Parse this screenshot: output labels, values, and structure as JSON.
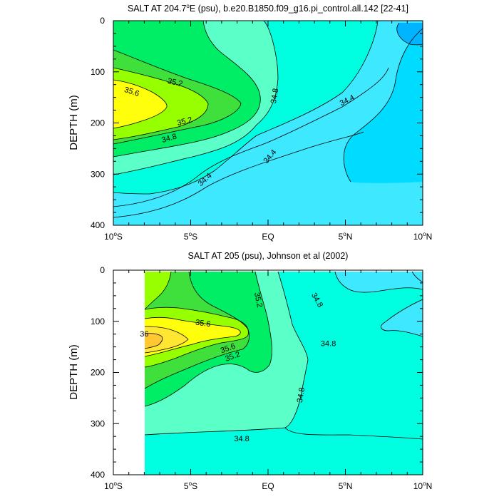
{
  "chart_data": [
    {
      "type": "contour",
      "title_main": "SALT AT 204.7",
      "title_deg": "o",
      "title_rest": "E (psu), b.e20.B1850.f09_g16.pi_control.all.142 [22-41]",
      "ylabel": "DEPTH (m)",
      "xlabel": "",
      "xlim": [
        -10,
        10
      ],
      "ylim": [
        0,
        400
      ],
      "y_inverted": true,
      "grid": false,
      "y_ticks": [
        "0",
        "100",
        "200",
        "300",
        "400"
      ],
      "x_ticks": [
        {
          "value": -10,
          "num": "10",
          "sup": "o",
          "hemi": "S"
        },
        {
          "value": -5,
          "num": "5",
          "sup": "o",
          "hemi": "S"
        },
        {
          "value": 0,
          "num": "EQ",
          "sup": "",
          "hemi": ""
        },
        {
          "value": 5,
          "num": "5",
          "sup": "o",
          "hemi": "N"
        },
        {
          "value": 10,
          "num": "10",
          "sup": "o",
          "hemi": "N"
        }
      ],
      "levels": [
        34.2,
        34.4,
        34.6,
        34.8,
        35.0,
        35.2,
        35.4,
        35.6
      ],
      "fill_colors": [
        "#00b4ff",
        "#00dcff",
        "#3ee8ff",
        "#00ffe1",
        "#5bffc8",
        "#00ee66",
        "#3fe03c",
        "#96ff00",
        "#ffff0c"
      ],
      "labels": [
        {
          "text": "35.6",
          "x": -8.8,
          "y": 138,
          "angle": 18
        },
        {
          "text": "35.2",
          "x": -6.0,
          "y": 120,
          "angle": 12
        },
        {
          "text": "35.2",
          "x": -5.4,
          "y": 196,
          "angle": -14
        },
        {
          "text": "34.8",
          "x": -6.4,
          "y": 229,
          "angle": -16
        },
        {
          "text": "34.8",
          "x": 0.4,
          "y": 147,
          "angle": -80
        },
        {
          "text": "34.4",
          "x": 5.1,
          "y": 155,
          "angle": -27
        },
        {
          "text": "34.4",
          "x": 0.1,
          "y": 265,
          "angle": -50
        },
        {
          "text": "34.4",
          "x": -4.1,
          "y": 310,
          "angle": -42
        }
      ]
    },
    {
      "type": "contour",
      "title_main": "SALT AT 205 (psu), Johnson et al (2002)",
      "title_deg": "",
      "title_rest": "",
      "ylabel": "DEPTH (m)",
      "xlabel": "",
      "xlim": [
        -10,
        10
      ],
      "ylim": [
        0,
        400
      ],
      "y_inverted": true,
      "grid": false,
      "y_ticks": [
        "0",
        "100",
        "200",
        "300",
        "400"
      ],
      "x_ticks": [
        {
          "value": -10,
          "num": "10",
          "sup": "o",
          "hemi": "S"
        },
        {
          "value": -5,
          "num": "5",
          "sup": "o",
          "hemi": "S"
        },
        {
          "value": 0,
          "num": "EQ",
          "sup": "",
          "hemi": ""
        },
        {
          "value": 5,
          "num": "5",
          "sup": "o",
          "hemi": "N"
        },
        {
          "value": 10,
          "num": "10",
          "sup": "o",
          "hemi": "N"
        }
      ],
      "levels": [
        34.6,
        34.8,
        35.0,
        35.2,
        35.4,
        35.6,
        35.8,
        36.0
      ],
      "fill_colors": [
        "#3ee8ff",
        "#00ffe1",
        "#5bffc8",
        "#00ee66",
        "#3fe03c",
        "#96ff00",
        "#ffff0c",
        "#ffe632",
        "#ffc832"
      ],
      "labels": [
        {
          "text": "35.6",
          "x": -4.2,
          "y": 103,
          "angle": 8
        },
        {
          "text": "36",
          "x": -8.0,
          "y": 124,
          "angle": 0
        },
        {
          "text": "35.6",
          "x": -2.6,
          "y": 152,
          "angle": -20
        },
        {
          "text": "35.2",
          "x": -2.3,
          "y": 168,
          "angle": -20
        },
        {
          "text": "35.2",
          "x": -0.6,
          "y": 58,
          "angle": 78
        },
        {
          "text": "34.8",
          "x": 3.2,
          "y": 58,
          "angle": 60
        },
        {
          "text": "34.8",
          "x": 3.9,
          "y": 143,
          "angle": 0
        },
        {
          "text": "34.8",
          "x": 2.1,
          "y": 244,
          "angle": -80
        },
        {
          "text": "34.8",
          "x": -1.7,
          "y": 329,
          "angle": 0
        }
      ]
    }
  ]
}
